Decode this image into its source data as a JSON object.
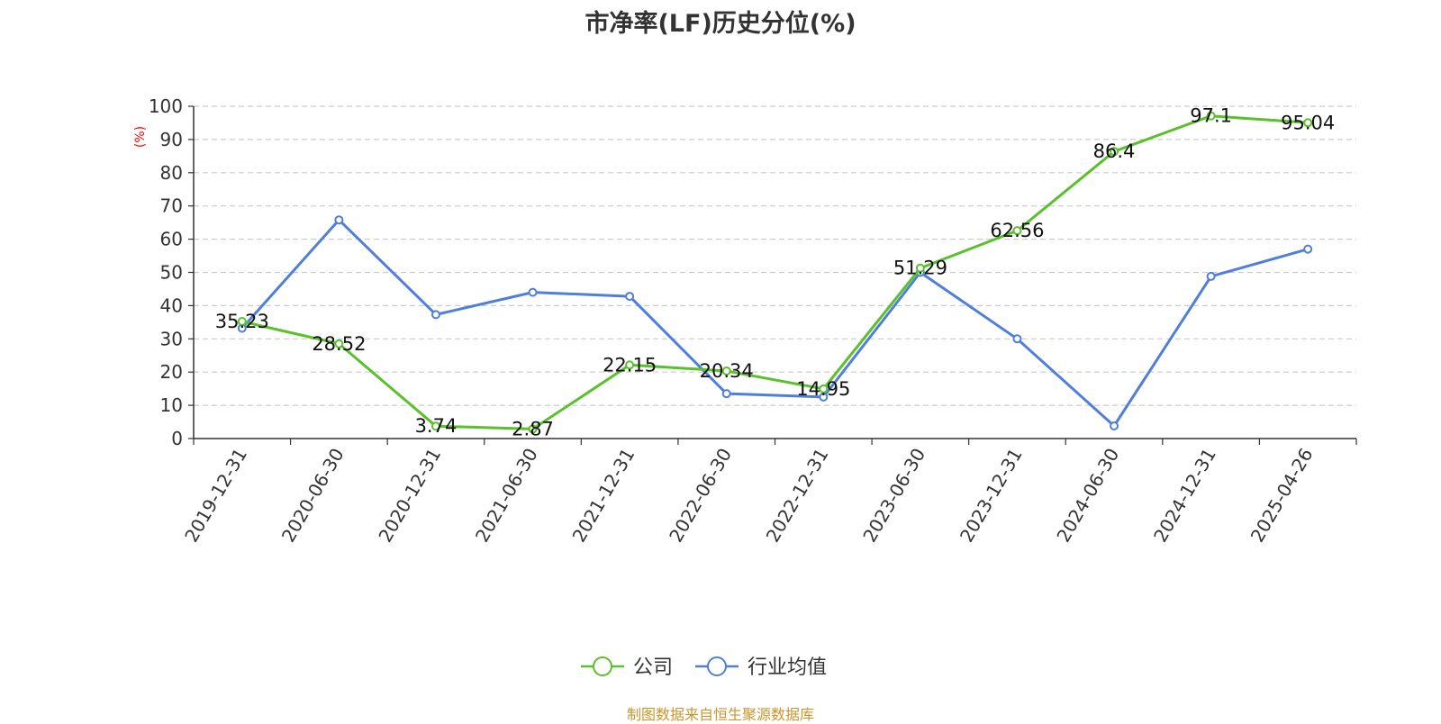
{
  "chart_data": {
    "type": "line",
    "title": "市净率(LF)历史分位(%)",
    "ylabel": "(%)",
    "xlabel": "",
    "ylim": [
      0,
      100
    ],
    "yticks": [
      0,
      10,
      20,
      30,
      40,
      50,
      60,
      70,
      80,
      90,
      100
    ],
    "grid": true,
    "legend_position": "bottom",
    "categories": [
      "2019-12-31",
      "2020-06-30",
      "2020-12-31",
      "2021-06-30",
      "2021-12-31",
      "2022-06-30",
      "2022-12-31",
      "2023-06-30",
      "2023-12-31",
      "2024-06-30",
      "2024-12-31",
      "2025-04-26"
    ],
    "series": [
      {
        "name": "公司",
        "color": "#5ac12c",
        "values": [
          35.23,
          28.52,
          3.74,
          2.87,
          22.15,
          20.34,
          14.95,
          51.29,
          62.56,
          86.4,
          97.1,
          95.04
        ],
        "labels": [
          "35.23",
          "28.52",
          "3.74",
          "2.87",
          "22.15",
          "20.34",
          "14.95",
          "51.29",
          "62.56",
          "86.4",
          "97.1",
          "95.04"
        ]
      },
      {
        "name": "行业均值",
        "color": "#4f7fdb",
        "values": [
          33.2,
          65.8,
          37.3,
          44.0,
          42.8,
          13.5,
          12.5,
          50.0,
          30.0,
          3.8,
          48.8,
          57.0
        ]
      }
    ]
  },
  "footer": {
    "source": "制图数据来自恒生聚源数据库",
    "source_color": "#c8962e"
  }
}
